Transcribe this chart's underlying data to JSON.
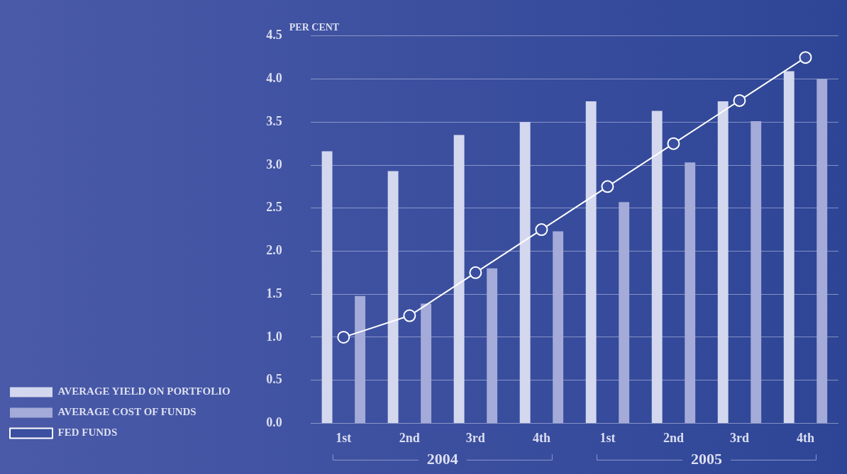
{
  "chart_data": {
    "type": "bar",
    "ylabel": "PER CENT",
    "categories": [
      "1st",
      "2nd",
      "3rd",
      "4th",
      "1st",
      "2nd",
      "3rd",
      "4th"
    ],
    "series": [
      {
        "name": "AVERAGE YIELD ON PORTFOLIO",
        "color": "#d4d8ee",
        "values": [
          3.16,
          2.93,
          3.35,
          3.5,
          3.74,
          3.63,
          3.74,
          4.09
        ]
      },
      {
        "name": "AVERAGE COST OF FUNDS",
        "color": "#a4abd8",
        "values": [
          1.48,
          1.39,
          1.8,
          2.23,
          2.57,
          3.03,
          3.51,
          4.0
        ]
      },
      {
        "name": "FED FUNDS",
        "type": "line",
        "color": "#ffffff",
        "marker": "circle",
        "values": [
          1.0,
          1.25,
          1.75,
          2.25,
          2.75,
          3.25,
          3.75,
          4.25
        ]
      }
    ],
    "ylim": [
      0,
      4.5
    ],
    "yticks": [
      {
        "value": 0,
        "label": "0.0"
      },
      0.5,
      {
        "value": 1,
        "label": "1.0"
      },
      1.5,
      {
        "value": 2,
        "label": "2.0"
      },
      2.5,
      {
        "value": 3,
        "label": "3.0"
      },
      3.5,
      {
        "value": 4,
        "label": "4.0"
      },
      4.5
    ],
    "grid": "y",
    "legend": "bottom left",
    "annotations": [
      "2004",
      "2005"
    ]
  }
}
